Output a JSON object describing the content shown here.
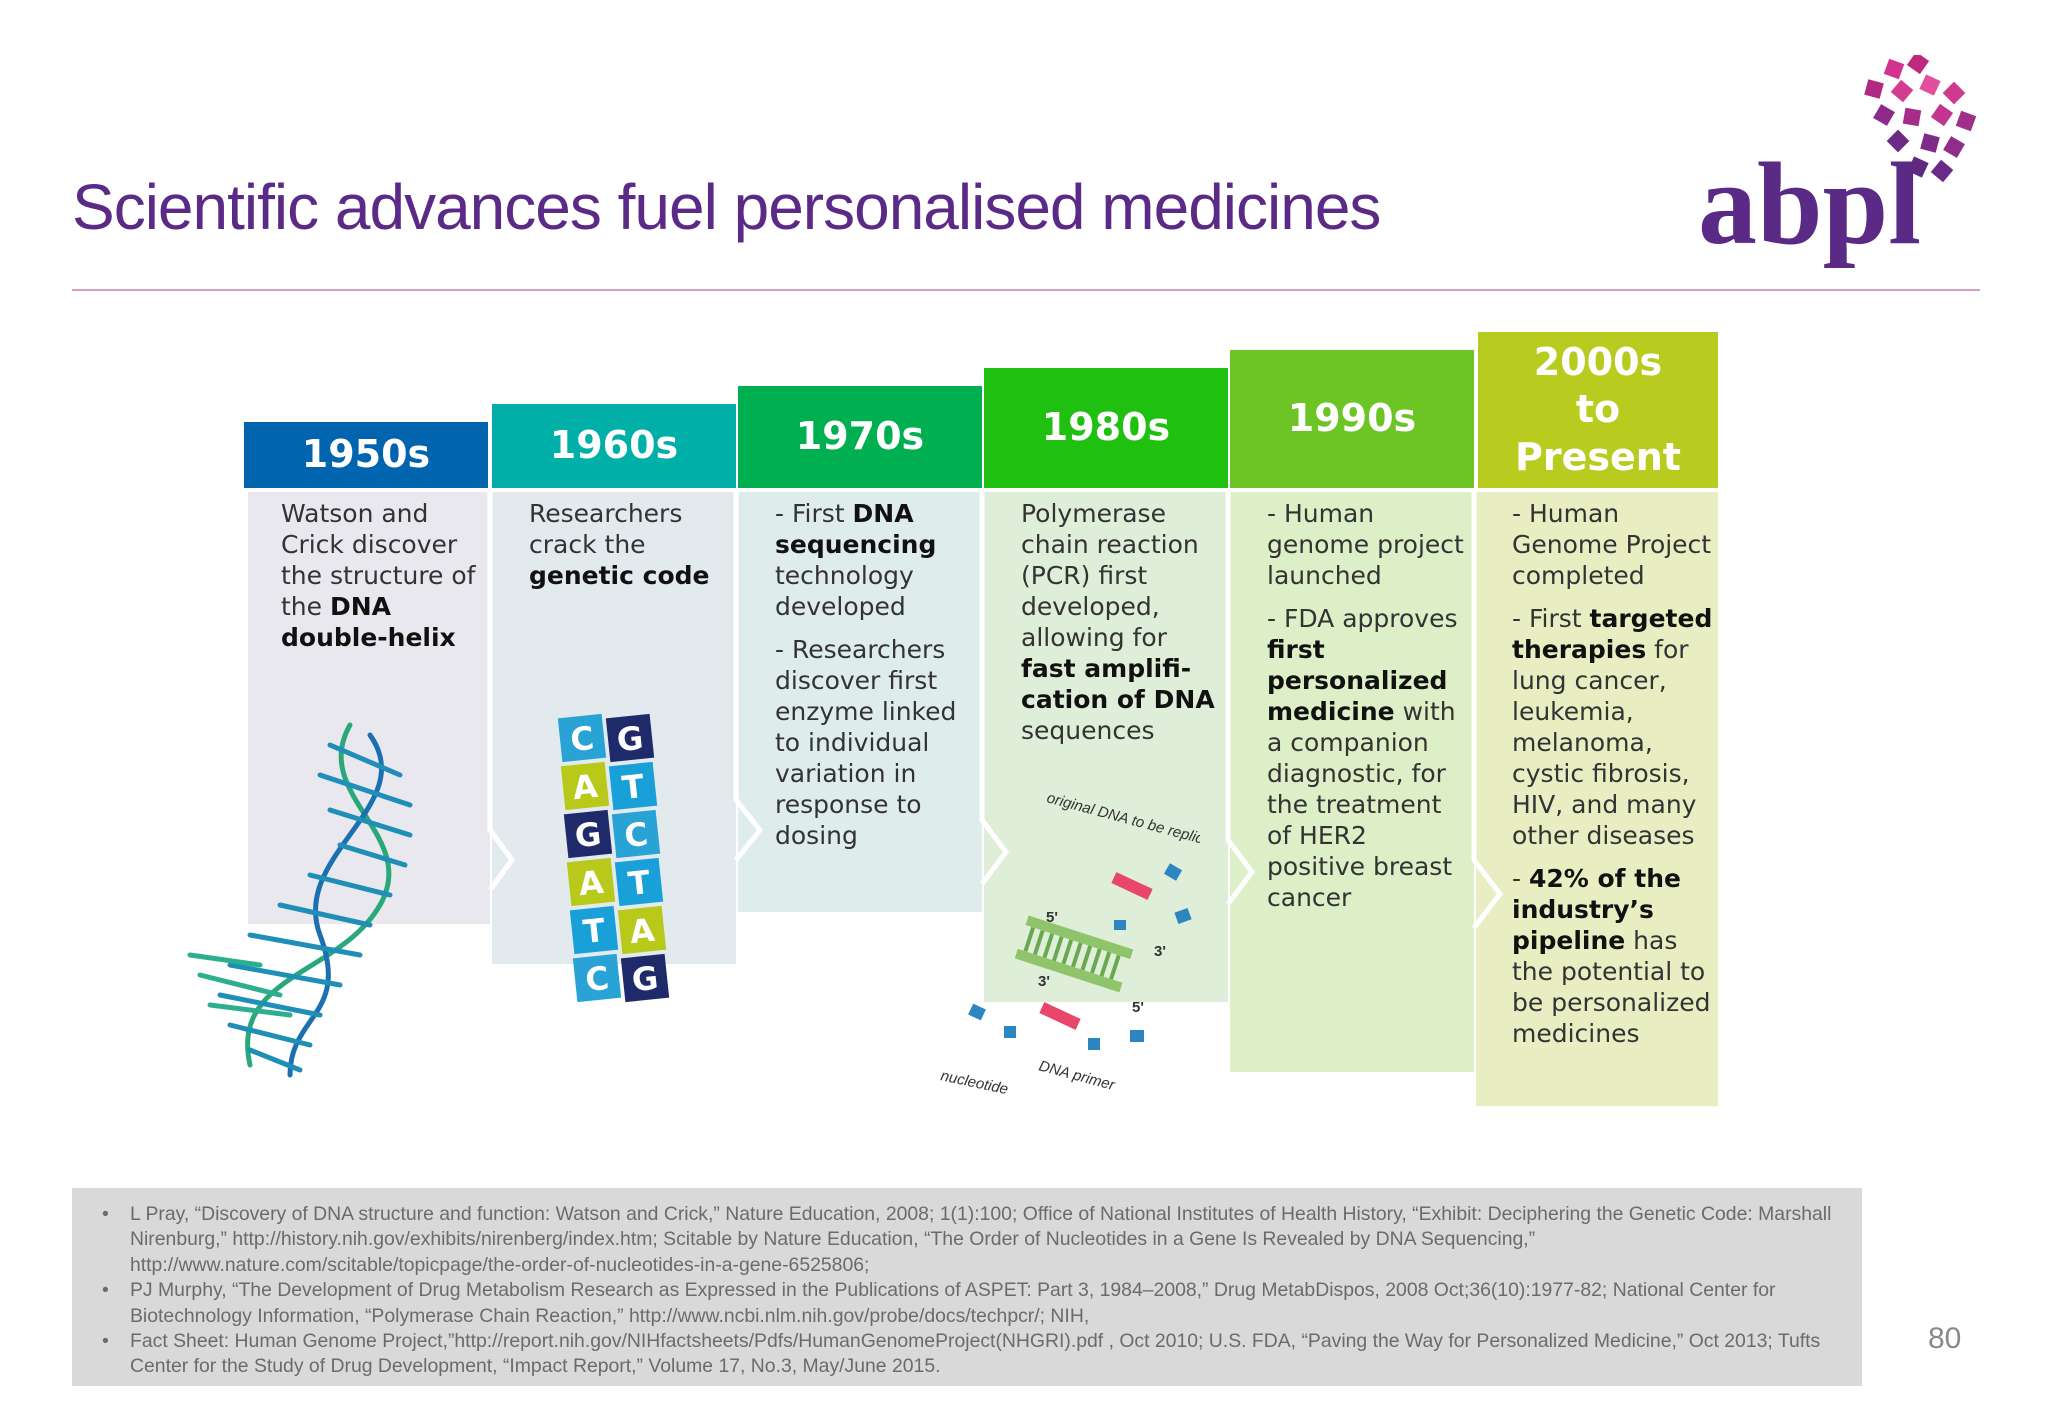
{
  "title": "Scientific advances fuel personalised medicines",
  "logo_text": "abpl",
  "colors": {
    "title": "#5b2a86",
    "rule": "#d9a0c4",
    "h1950": "#0064ae",
    "h1960": "#00b0a8",
    "h1970": "#00b050",
    "h1980": "#20c010",
    "h1990": "#6cc524",
    "h2000": "#b8cc20"
  },
  "timeline": [
    {
      "era": "1950s",
      "paragraphs": [
        "Watson and Crick discover the structure of the **DNA double-helix**"
      ]
    },
    {
      "era": "1960s",
      "paragraphs": [
        "Researchers crack the **genetic code**"
      ]
    },
    {
      "era": "1970s",
      "paragraphs": [
        "- First **DNA sequencing** technology developed",
        "- Researchers discover first enzyme linked to individual variation in response to dosing"
      ]
    },
    {
      "era": "1980s",
      "paragraphs": [
        "Polymerase chain reaction (PCR) first developed, allowing for **fast amplifi-cation of DNA** sequences"
      ]
    },
    {
      "era": "1990s",
      "paragraphs": [
        "- Human genome project launched",
        "- FDA approves **first personalized medicine** with a companion diagnostic, for the treatment of HER2 positive breast cancer"
      ]
    },
    {
      "era": "2000s to Present",
      "paragraphs": [
        "- Human Genome Project completed",
        "- First **targeted therapies** for lung cancer, leukemia, melanoma, cystic fibrosis, HIV,  and many other diseases",
        "- **42% of the industry’s pipeline** has the potential to be personalized medicines"
      ]
    }
  ],
  "codon_letters": [
    [
      "C",
      "G"
    ],
    [
      "A",
      "T"
    ],
    [
      "G",
      "C"
    ],
    [
      "A",
      "T"
    ],
    [
      "T",
      "A"
    ],
    [
      "C",
      "G"
    ]
  ],
  "pcr_labels": {
    "original": "original DNA to be replicated",
    "five_a": "5'",
    "three_a": "3'",
    "three_b": "3'",
    "five_b": "5'",
    "nucleotide": "nucleotide",
    "primer": "DNA primer"
  },
  "references": [
    "L Pray, “Discovery of DNA structure and function: Watson and Crick,” Nature Education, 2008; 1(1):100; Office of National Institutes of Health History, “Exhibit: Deciphering the Genetic Code: Marshall Nirenburg,” http://history.nih.gov/exhibits/nirenberg/index.htm; Scitable by Nature Education, “The Order of Nucleotides in a Gene Is Revealed by DNA Sequencing,” http://www.nature.com/scitable/topicpage/the-order-of-nucleotides-in-a-gene-6525806;",
    "PJ Murphy, “The Development of Drug Metabolism Research as Expressed in the Publications of ASPET: Part 3, 1984–2008,” Drug MetabDispos, 2008 Oct;36(10):1977-82; National Center for Biotechnology Information, “Polymerase Chain Reaction,” http://www.ncbi.nlm.nih.gov/probe/docs/techpcr/; NIH,",
    "Fact Sheet: Human Genome Project,”http://report.nih.gov/NIHfactsheets/Pdfs/HumanGenomeProject(NHGRI).pdf , Oct 2010; U.S. FDA, “Paving the Way for Personalized Medicine,” Oct 2013;  Tufts Center for the Study of Drug Development, “Impact Report,” Volume 17, No.3, May/June 2015."
  ],
  "page_number": "80"
}
